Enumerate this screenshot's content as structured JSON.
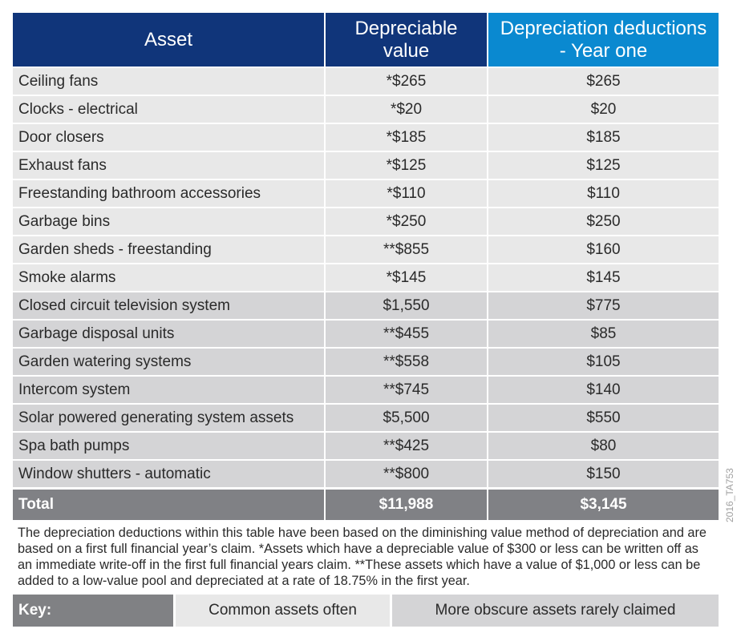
{
  "header": {
    "asset": "Asset",
    "depreciable_value": "Depreciable value",
    "deduction": "Depreciation deductions - Year one"
  },
  "rows": [
    {
      "asset": "Ceiling fans",
      "value": "*$265",
      "deduction": "$265",
      "group": "common"
    },
    {
      "asset": "Clocks - electrical",
      "value": "*$20",
      "deduction": "$20",
      "group": "common"
    },
    {
      "asset": "Door closers",
      "value": "*$185",
      "deduction": "$185",
      "group": "common"
    },
    {
      "asset": "Exhaust fans",
      "value": "*$125",
      "deduction": "$125",
      "group": "common"
    },
    {
      "asset": "Freestanding bathroom accessories",
      "value": "*$110",
      "deduction": "$110",
      "group": "common"
    },
    {
      "asset": "Garbage bins",
      "value": "*$250",
      "deduction": "$250",
      "group": "common"
    },
    {
      "asset": "Garden sheds - freestanding",
      "value": "**$855",
      "deduction": "$160",
      "group": "common"
    },
    {
      "asset": "Smoke alarms",
      "value": "*$145",
      "deduction": "$145",
      "group": "common"
    },
    {
      "asset": "Closed circuit television system",
      "value": "$1,550",
      "deduction": "$775",
      "group": "obscure"
    },
    {
      "asset": "Garbage disposal units",
      "value": "**$455",
      "deduction": "$85",
      "group": "obscure"
    },
    {
      "asset": "Garden watering systems",
      "value": "**$558",
      "deduction": "$105",
      "group": "obscure"
    },
    {
      "asset": "Intercom system",
      "value": "**$745",
      "deduction": "$140",
      "group": "obscure"
    },
    {
      "asset": "Solar powered generating system assets",
      "value": "$5,500",
      "deduction": "$550",
      "group": "obscure"
    },
    {
      "asset": "Spa bath pumps",
      "value": "**$425",
      "deduction": "$80",
      "group": "obscure"
    },
    {
      "asset": "Window shutters - automatic",
      "value": "**$800",
      "deduction": "$150",
      "group": "obscure"
    }
  ],
  "total": {
    "label": "Total",
    "value": "$11,988",
    "deduction": "$3,145"
  },
  "footnote": "The depreciation deductions within this table have been based on the diminishing value method of depreciation and are based on a first full financial year’s claim. *Assets which have a depreciable value of $300 or less can be written off as an immediate write-off in the first full financial years claim. **These assets which have a value of $1,000 or less can be added to a low-value pool and depreciated at a rate of 18.75% in the first year.",
  "key": {
    "label": "Key:",
    "common": "Common assets often",
    "obscure": "More obscure assets rarely claimed"
  },
  "watermark": "2016_TA753",
  "colors": {
    "header_navy": "#10357a",
    "header_blue": "#0a89d0",
    "common_row": "#e8e8e8",
    "obscure_row": "#d4d4d6",
    "total_row": "#808185"
  }
}
